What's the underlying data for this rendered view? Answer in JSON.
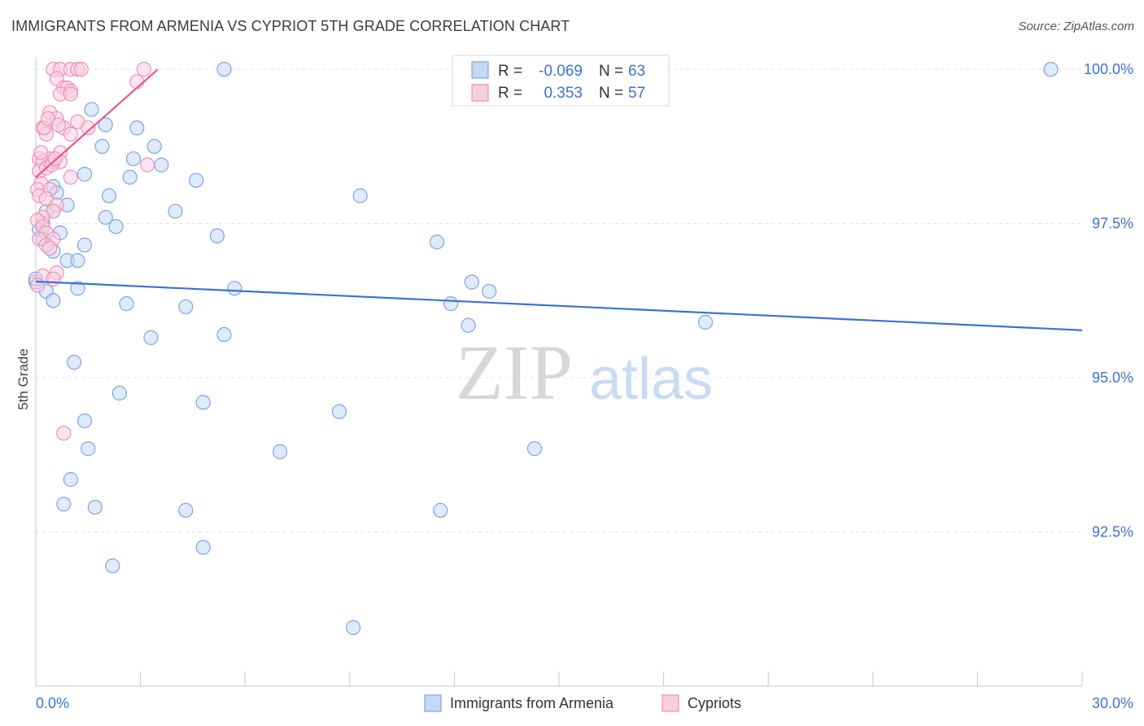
{
  "header": {
    "title": "IMMIGRANTS FROM ARMENIA VS CYPRIOT 5TH GRADE CORRELATION CHART",
    "source": "Source: ZipAtlas.com"
  },
  "watermark": {
    "zip": "ZIP",
    "atlas": "atlas"
  },
  "colors": {
    "blue": "#7aa6e6",
    "blue_line": "#3b73d1",
    "blue_fill": "#c5d9f5",
    "pink": "#f08fb4",
    "pink_line": "#e8568c",
    "pink_fill": "#f9cfe0",
    "grid": "#e3e3e3",
    "axis_label": "#3b73d1"
  },
  "chart_data": {
    "type": "scatter",
    "title": "IMMIGRANTS FROM ARMENIA VS CYPRIOT 5TH GRADE CORRELATION CHART",
    "xlabel": "",
    "ylabel": "5th Grade",
    "xlim": [
      0,
      30
    ],
    "ylim": [
      90.0,
      100.2
    ],
    "x_tick_labels": [
      "0.0%",
      "30.0%"
    ],
    "y_ticks": [
      92.5,
      95.0,
      97.5,
      100.0
    ],
    "y_tick_labels": [
      "92.5%",
      "95.0%",
      "97.5%",
      "100.0%"
    ],
    "legend_stats": [
      {
        "r_label": "R =",
        "r_value": "-0.069",
        "n_label": "N =",
        "n_value": "63"
      },
      {
        "r_label": "R =",
        "r_value": "0.353",
        "n_label": "N =",
        "n_value": "57"
      }
    ],
    "series": [
      {
        "name": "Immigrants from Armenia",
        "color": "#7aa6e6",
        "trend": {
          "x": [
            0.0,
            30.0
          ],
          "y": [
            96.56,
            95.77
          ]
        },
        "points": [
          [
            5.4,
            100.0
          ],
          [
            29.1,
            100.0
          ],
          [
            1.6,
            99.35
          ],
          [
            2.0,
            99.1
          ],
          [
            2.9,
            99.05
          ],
          [
            1.9,
            98.75
          ],
          [
            3.4,
            98.75
          ],
          [
            2.8,
            98.55
          ],
          [
            3.6,
            98.45
          ],
          [
            1.4,
            98.3
          ],
          [
            2.7,
            98.25
          ],
          [
            4.6,
            98.2
          ],
          [
            0.5,
            98.1
          ],
          [
            0.6,
            98.0
          ],
          [
            2.1,
            97.95
          ],
          [
            9.3,
            97.95
          ],
          [
            0.9,
            97.8
          ],
          [
            0.3,
            97.7
          ],
          [
            0.5,
            97.7
          ],
          [
            4.0,
            97.7
          ],
          [
            2.0,
            97.6
          ],
          [
            2.3,
            97.45
          ],
          [
            0.2,
            97.5
          ],
          [
            0.1,
            97.4
          ],
          [
            0.7,
            97.35
          ],
          [
            5.2,
            97.3
          ],
          [
            11.5,
            97.2
          ],
          [
            0.2,
            97.25
          ],
          [
            1.4,
            97.15
          ],
          [
            0.5,
            97.05
          ],
          [
            0.9,
            96.9
          ],
          [
            1.2,
            96.9
          ],
          [
            12.5,
            96.55
          ],
          [
            0.0,
            96.55
          ],
          [
            1.2,
            96.45
          ],
          [
            5.7,
            96.45
          ],
          [
            13.0,
            96.4
          ],
          [
            0.3,
            96.4
          ],
          [
            0.5,
            96.25
          ],
          [
            2.6,
            96.2
          ],
          [
            4.3,
            96.15
          ],
          [
            11.9,
            96.2
          ],
          [
            12.4,
            95.85
          ],
          [
            19.2,
            95.9
          ],
          [
            3.3,
            95.65
          ],
          [
            5.4,
            95.7
          ],
          [
            1.1,
            95.25
          ],
          [
            2.4,
            94.75
          ],
          [
            4.8,
            94.6
          ],
          [
            8.7,
            94.45
          ],
          [
            1.4,
            94.3
          ],
          [
            1.5,
            93.85
          ],
          [
            7.0,
            93.8
          ],
          [
            14.3,
            93.85
          ],
          [
            1.0,
            93.35
          ],
          [
            0.8,
            92.95
          ],
          [
            1.7,
            92.9
          ],
          [
            4.3,
            92.85
          ],
          [
            11.6,
            92.85
          ],
          [
            4.8,
            92.25
          ],
          [
            2.2,
            91.95
          ],
          [
            9.1,
            90.95
          ],
          [
            0.0,
            96.6
          ]
        ]
      },
      {
        "name": "Cypriots",
        "color": "#f08fb4",
        "trend": {
          "x": [
            0.0,
            3.5
          ],
          "y": [
            98.25,
            100.0
          ]
        },
        "points": [
          [
            0.5,
            100.0
          ],
          [
            0.7,
            100.0
          ],
          [
            1.0,
            100.0
          ],
          [
            1.2,
            100.0
          ],
          [
            1.3,
            100.0
          ],
          [
            3.1,
            100.0
          ],
          [
            2.9,
            99.8
          ],
          [
            0.6,
            99.85
          ],
          [
            0.8,
            99.7
          ],
          [
            0.9,
            99.7
          ],
          [
            1.0,
            99.65
          ],
          [
            0.7,
            99.6
          ],
          [
            1.0,
            99.6
          ],
          [
            0.4,
            99.3
          ],
          [
            0.6,
            99.2
          ],
          [
            1.2,
            99.15
          ],
          [
            0.2,
            99.05
          ],
          [
            0.8,
            99.05
          ],
          [
            1.5,
            99.05
          ],
          [
            0.3,
            98.95
          ],
          [
            1.0,
            98.95
          ],
          [
            0.7,
            98.65
          ],
          [
            0.1,
            98.55
          ],
          [
            0.4,
            98.55
          ],
          [
            0.5,
            98.5
          ],
          [
            0.2,
            98.5
          ],
          [
            0.7,
            98.5
          ],
          [
            3.2,
            98.45
          ],
          [
            0.1,
            98.35
          ],
          [
            0.3,
            98.4
          ],
          [
            1.0,
            98.25
          ],
          [
            0.15,
            98.15
          ],
          [
            0.05,
            98.05
          ],
          [
            0.4,
            98.05
          ],
          [
            0.1,
            97.95
          ],
          [
            0.3,
            97.9
          ],
          [
            0.6,
            97.8
          ],
          [
            0.5,
            97.7
          ],
          [
            0.2,
            97.6
          ],
          [
            0.05,
            97.55
          ],
          [
            0.2,
            97.45
          ],
          [
            0.3,
            97.35
          ],
          [
            0.1,
            97.25
          ],
          [
            0.5,
            97.25
          ],
          [
            0.3,
            97.15
          ],
          [
            0.4,
            97.1
          ],
          [
            0.6,
            96.7
          ],
          [
            0.2,
            96.65
          ],
          [
            0.5,
            96.6
          ],
          [
            0.05,
            96.5
          ],
          [
            0.8,
            94.1
          ],
          [
            0.15,
            98.65
          ],
          [
            0.25,
            99.05
          ],
          [
            0.45,
            98.45
          ],
          [
            0.35,
            99.2
          ],
          [
            0.55,
            98.55
          ],
          [
            0.65,
            99.1
          ]
        ]
      }
    ]
  }
}
